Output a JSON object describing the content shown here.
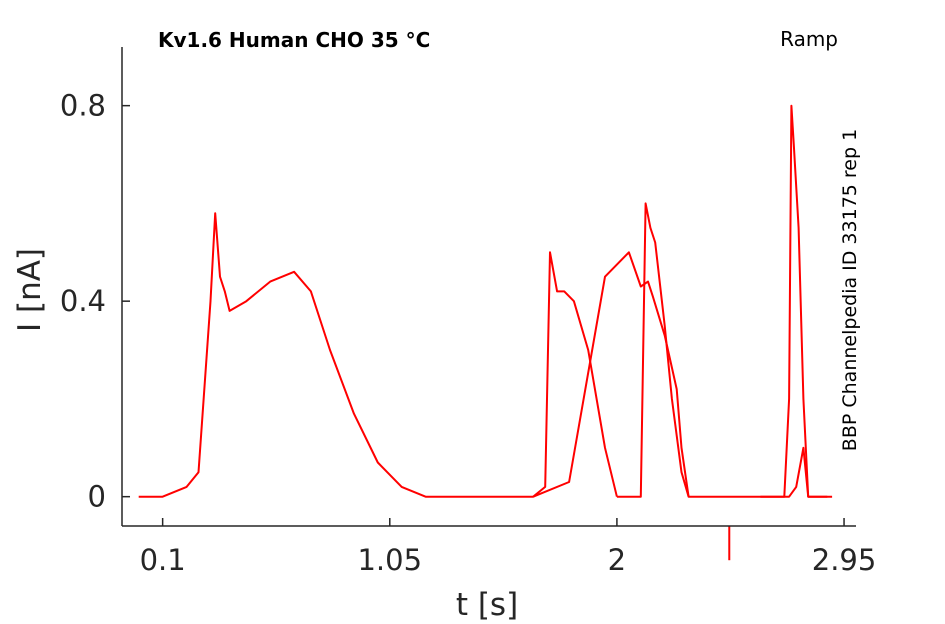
{
  "title": "Kv1.6  Human  CHO  35 °C",
  "protocol": "Ramp",
  "side_label": "BBP Channelpedia ID 33175 rep 1",
  "colors": {
    "trace": "#ff0000",
    "axis": "#262626",
    "text": "#000000"
  },
  "chart_data": {
    "type": "line",
    "xlabel": "t [s]",
    "ylabel": "I [nA]",
    "xlim": [
      -0.07,
      3.0
    ],
    "ylim": [
      -0.06,
      0.92
    ],
    "xticks": [
      0.1,
      1.05,
      2,
      2.95
    ],
    "xtick_labels": [
      "0.1",
      "1.05",
      "2",
      "2.95"
    ],
    "yticks": [
      0,
      0.4,
      0.8
    ],
    "ytick_labels": [
      "0",
      "0.4",
      "0.8"
    ],
    "grid": false,
    "legend": "none",
    "artifact": {
      "x": 2.47,
      "y_from": -0.06,
      "y_to": -0.13
    },
    "series": [
      {
        "x": [
          0.0,
          0.1,
          0.2,
          0.25,
          0.3,
          0.32,
          0.34,
          0.36,
          0.38,
          0.45,
          0.55,
          0.65,
          0.72,
          0.8,
          0.9,
          1.0,
          1.1,
          1.2,
          1.25,
          1.28,
          1.35,
          1.45,
          1.55,
          1.65,
          1.8,
          1.95,
          2.05,
          2.1,
          2.13,
          2.15,
          2.2,
          2.25,
          2.27,
          2.3,
          2.5,
          2.6,
          2.65,
          2.7,
          2.72,
          2.75,
          2.78,
          2.8,
          2.9
        ],
        "y": [
          0.0,
          0.0,
          0.02,
          0.05,
          0.4,
          0.58,
          0.45,
          0.42,
          0.38,
          0.4,
          0.44,
          0.46,
          0.42,
          0.3,
          0.17,
          0.07,
          0.02,
          0.0,
          0.0,
          0.0,
          0.0,
          0.0,
          0.0,
          0.0,
          0.03,
          0.45,
          0.5,
          0.43,
          0.44,
          0.41,
          0.33,
          0.22,
          0.1,
          0.0,
          0.0,
          0.0,
          0.0,
          0.0,
          0.0,
          0.02,
          0.1,
          0.0,
          0.0
        ]
      },
      {
        "x": [
          1.65,
          1.7,
          1.72,
          1.75,
          1.78,
          1.82,
          1.88,
          1.95,
          2.0
        ],
        "y": [
          0.0,
          0.02,
          0.5,
          0.42,
          0.42,
          0.4,
          0.3,
          0.1,
          0.0
        ]
      },
      {
        "x": [
          2.0,
          2.1,
          2.12,
          2.14,
          2.16,
          2.2,
          2.23,
          2.27,
          2.3
        ],
        "y": [
          0.0,
          0.0,
          0.6,
          0.55,
          0.52,
          0.35,
          0.2,
          0.05,
          0.0
        ]
      },
      {
        "x": [
          2.6,
          2.7,
          2.72,
          2.73,
          2.74,
          2.76,
          2.78,
          2.8,
          2.88
        ],
        "y": [
          0.0,
          0.0,
          0.2,
          0.8,
          0.72,
          0.55,
          0.2,
          0.0,
          0.0
        ]
      }
    ]
  }
}
